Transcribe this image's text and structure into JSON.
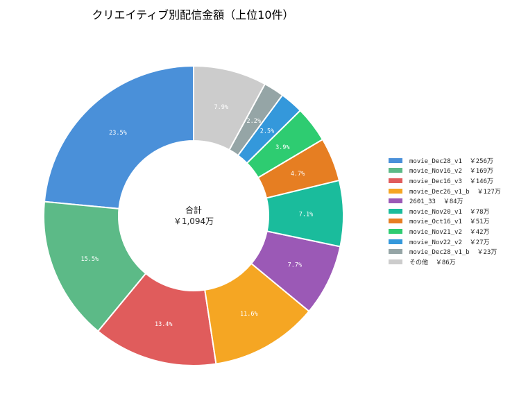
{
  "chart_data": {
    "type": "pie",
    "title": "クリエイティブ別配信金額（上位10件）",
    "center_label": [
      "合計",
      "￥1,094万"
    ],
    "slices": [
      {
        "label": "movie_Dec28_v1",
        "amount": "￥256万",
        "value": 23.5,
        "pct_label": "23.5%",
        "color": "#4a90d9"
      },
      {
        "label": "movie_Nov16_v2",
        "amount": "￥169万",
        "value": 15.5,
        "pct_label": "15.5%",
        "color": "#5cba87"
      },
      {
        "label": "movie_Dec16_v3",
        "amount": "￥146万",
        "value": 13.4,
        "pct_label": "13.4%",
        "color": "#e05c5c"
      },
      {
        "label": "movie_Dec26_v1_b",
        "amount": "￥127万",
        "value": 11.6,
        "pct_label": "11.6%",
        "color": "#f5a623"
      },
      {
        "label": "2601_33",
        "amount": "￥84万",
        "value": 7.7,
        "pct_label": "7.7%",
        "color": "#9b59b6"
      },
      {
        "label": "movie_Nov20_v1",
        "amount": "￥78万",
        "value": 7.1,
        "pct_label": "7.1%",
        "color": "#1abc9c"
      },
      {
        "label": "movie_Oct16_v1",
        "amount": "￥51万",
        "value": 4.7,
        "pct_label": "4.7%",
        "color": "#e67e22"
      },
      {
        "label": "movie_Nov21_v2",
        "amount": "￥42万",
        "value": 3.9,
        "pct_label": "3.9%",
        "color": "#2ecc71"
      },
      {
        "label": "movie_Nov22_v2",
        "amount": "￥27万",
        "value": 2.5,
        "pct_label": "2.5%",
        "color": "#3498db"
      },
      {
        "label": "movie_Dec28_v1_b",
        "amount": "￥23万",
        "value": 2.2,
        "pct_label": "2.2%",
        "color": "#95a5a6"
      },
      {
        "label": "その他",
        "amount": "￥86万",
        "value": 7.9,
        "pct_label": "7.9%",
        "color": "#cccccc"
      }
    ],
    "legend_position": "right",
    "start_angle": "12 o'clock",
    "direction": "counterclockwise"
  }
}
